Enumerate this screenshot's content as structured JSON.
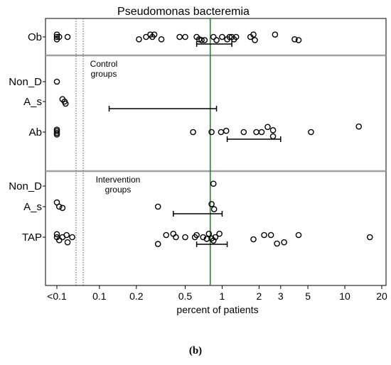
{
  "caption": "(b)",
  "chart_data": {
    "type": "scatter",
    "title": "Pseudomonas bacteremia",
    "xlabel": "percent of patients",
    "x_scale": "log",
    "x_ticks": [
      {
        "value": 0.045,
        "label": "<0.1"
      },
      {
        "value": 0.1,
        "label": "0.1"
      },
      {
        "value": 0.2,
        "label": "0.2"
      },
      {
        "value": 0.5,
        "label": "0.5"
      },
      {
        "value": 1,
        "label": "1"
      },
      {
        "value": 2,
        "label": "2"
      },
      {
        "value": 3,
        "label": "3"
      },
      {
        "value": 5,
        "label": "5"
      },
      {
        "value": 10,
        "label": "10"
      },
      {
        "value": 20,
        "label": "20"
      }
    ],
    "xlim": [
      0.04,
      25
    ],
    "reference_line": {
      "value": 0.8,
      "color": "#1a8a1a"
    },
    "colors": {
      "points": "#000000",
      "separator": "#a0a0a0",
      "dotted": "#555555"
    },
    "groups": [
      {
        "label": "",
        "rows": [
          "Ob"
        ]
      },
      {
        "label": "Control groups",
        "rows": [
          "Non_D",
          "A_s",
          "Ab"
        ]
      },
      {
        "label": "Intervention groups",
        "rows": [
          "Non_D",
          "A_s",
          "TAP"
        ]
      }
    ],
    "series": [
      {
        "row": "Ob",
        "points": [
          [
            0.045,
            -0.55
          ],
          [
            0.045,
            0.0
          ],
          [
            0.045,
            0.55
          ],
          [
            0.047,
            0.0
          ],
          [
            0.055,
            0.0
          ],
          [
            0.21,
            0.55
          ],
          [
            0.24,
            0.0
          ],
          [
            0.26,
            -0.55
          ],
          [
            0.27,
            0.0
          ],
          [
            0.28,
            -0.55
          ],
          [
            0.32,
            0.55
          ],
          [
            0.45,
            0.0
          ],
          [
            0.5,
            0.0
          ],
          [
            0.62,
            0.0
          ],
          [
            0.65,
            0.55
          ],
          [
            0.68,
            0.75
          ],
          [
            0.72,
            0.75
          ],
          [
            0.85,
            0.0
          ],
          [
            0.9,
            0.75
          ],
          [
            1.0,
            0.0
          ],
          [
            1.1,
            0.55
          ],
          [
            1.15,
            0.0
          ],
          [
            1.2,
            0.0
          ],
          [
            1.25,
            0.55
          ],
          [
            1.3,
            0.0
          ],
          [
            1.7,
            0.0
          ],
          [
            1.8,
            -0.55
          ],
          [
            1.85,
            0.75
          ],
          [
            2.7,
            -0.55
          ],
          [
            3.9,
            0.55
          ],
          [
            4.2,
            0.75
          ]
        ],
        "interval": [
          0.62,
          1.2
        ]
      },
      {
        "row": "Non_D",
        "group": "Control groups",
        "points": [
          [
            0.045,
            0.0
          ]
        ],
        "interval": null
      },
      {
        "row": "A_s",
        "group": "Control groups",
        "points": [
          [
            0.05,
            -0.55
          ],
          [
            0.052,
            0.0
          ],
          [
            0.053,
            0.5
          ]
        ],
        "interval": [
          0.12,
          0.9
        ]
      },
      {
        "row": "Ab",
        "group": "Control groups",
        "points": [
          [
            0.045,
            -0.55
          ],
          [
            0.045,
            -0.2
          ],
          [
            0.045,
            0.2
          ],
          [
            0.045,
            0.55
          ],
          [
            0.58,
            0.0
          ],
          [
            0.82,
            0.0
          ],
          [
            0.98,
            0.0
          ],
          [
            1.08,
            -0.3
          ],
          [
            1.5,
            0.0
          ],
          [
            1.9,
            0.0
          ],
          [
            2.1,
            0.0
          ],
          [
            2.35,
            -1.2
          ],
          [
            2.6,
            -0.45
          ],
          [
            2.6,
            1.0
          ],
          [
            5.3,
            0.0
          ],
          [
            13.0,
            -1.3
          ]
        ],
        "interval": [
          1.1,
          3.0
        ]
      },
      {
        "row": "Non_D",
        "group": "Intervention groups",
        "points": [
          [
            0.85,
            -0.55
          ]
        ],
        "interval": null
      },
      {
        "row": "A_s",
        "group": "Intervention groups",
        "points": [
          [
            0.045,
            -1.0
          ],
          [
            0.047,
            0.0
          ],
          [
            0.05,
            0.3
          ],
          [
            0.3,
            0.0
          ],
          [
            0.82,
            -0.6
          ],
          [
            0.86,
            0.6
          ]
        ],
        "interval": [
          0.4,
          1.0
        ]
      },
      {
        "row": "TAP",
        "group": "Intervention groups",
        "points": [
          [
            0.045,
            -0.7
          ],
          [
            0.045,
            0.0
          ],
          [
            0.047,
            0.7
          ],
          [
            0.05,
            0.0
          ],
          [
            0.054,
            -0.5
          ],
          [
            0.055,
            1.2
          ],
          [
            0.06,
            0.0
          ],
          [
            0.3,
            1.6
          ],
          [
            0.35,
            -0.5
          ],
          [
            0.4,
            -0.8
          ],
          [
            0.42,
            0.0
          ],
          [
            0.5,
            0.0
          ],
          [
            0.6,
            0.0
          ],
          [
            0.62,
            -0.5
          ],
          [
            0.7,
            0.0
          ],
          [
            0.75,
            0.4
          ],
          [
            0.78,
            -0.8
          ],
          [
            0.82,
            0.3
          ],
          [
            0.85,
            0.8
          ],
          [
            0.88,
            0.0
          ],
          [
            0.95,
            -0.8
          ],
          [
            1.8,
            0.5
          ],
          [
            2.2,
            -0.5
          ],
          [
            2.5,
            -0.5
          ],
          [
            2.8,
            1.5
          ],
          [
            3.2,
            1.2
          ],
          [
            4.2,
            -0.5
          ],
          [
            16.0,
            0.0
          ]
        ],
        "interval": [
          0.62,
          1.1
        ]
      }
    ]
  }
}
